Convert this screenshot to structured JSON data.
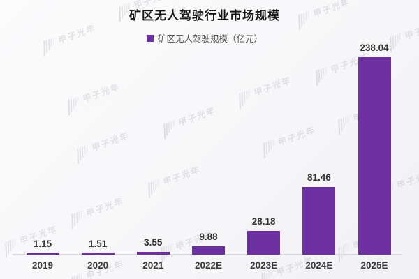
{
  "title": "矿区无人驾驶行业市场规模",
  "legend": {
    "label": "矿区无人驾驶规模（亿元）",
    "color": "#6C30A0"
  },
  "watermark": {
    "text": "甲子光年",
    "subtext": "· · · · · · · ·"
  },
  "chart_data": {
    "type": "bar",
    "title": "矿区无人驾驶行业市场规模",
    "categories": [
      "2019",
      "2020",
      "2021",
      "2022E",
      "2023E",
      "2024E",
      "2025E"
    ],
    "values": [
      1.15,
      1.51,
      3.55,
      9.88,
      28.18,
      81.46,
      238.04
    ],
    "value_labels": [
      "1.15",
      "1.51",
      "3.55",
      "9.88",
      "28.18",
      "81.46",
      "238.04"
    ],
    "series": [
      {
        "name": "矿区无人驾驶规模（亿元）",
        "values": [
          1.15,
          1.51,
          3.55,
          9.88,
          28.18,
          81.46,
          238.04
        ]
      }
    ],
    "xlabel": "",
    "ylabel": "",
    "ylim": [
      0,
      260
    ],
    "grid": false,
    "legend_position": "top-center",
    "bar_color": "#6C30A0",
    "axis_line_color": "#d9d9df"
  }
}
